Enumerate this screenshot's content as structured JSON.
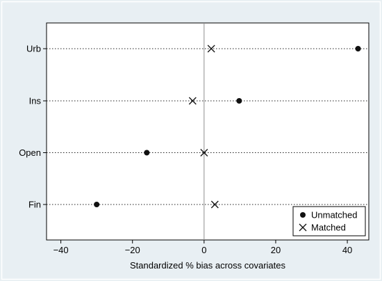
{
  "chart_data": {
    "type": "scatter",
    "title": "",
    "xlabel": "Standardized % bias across covariates",
    "ylabel": "",
    "xlim": [
      -44,
      46
    ],
    "xticks": [
      -40,
      -20,
      0,
      20,
      40
    ],
    "xtick_labels": [
      "−40",
      "−20",
      "0",
      "20",
      "40"
    ],
    "categories": [
      "Urb",
      "Ins",
      "Open",
      "Fin"
    ],
    "series": [
      {
        "name": "Unmatched",
        "marker": "filled-circle",
        "values": [
          43.0,
          9.8,
          -16.0,
          -30.0
        ]
      },
      {
        "name": "Matched",
        "marker": "x-cross",
        "values": [
          2.0,
          -3.2,
          0.0,
          3.0
        ]
      }
    ],
    "reference_line_x": 0,
    "grid": "dotted horizontal lines per category",
    "legend_position": "bottom-right"
  },
  "colors": {
    "background": "#e8eff3",
    "plot_area": "#ffffff",
    "marker": "#111111",
    "grid": "#222222",
    "reference_line": "#8c8c8c"
  }
}
